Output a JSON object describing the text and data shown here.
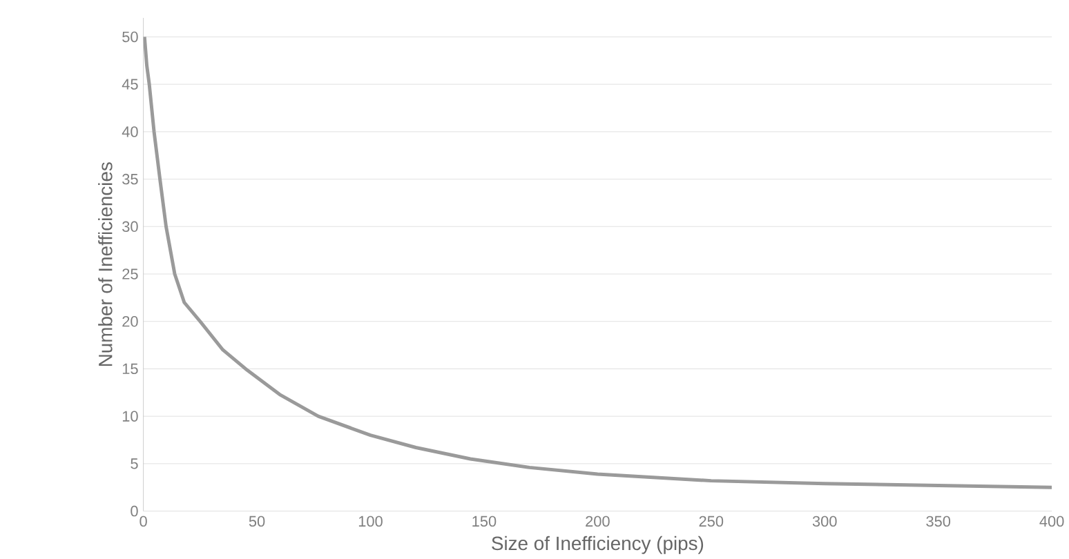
{
  "chart_data": {
    "type": "line",
    "xlabel": "Size of Inefficiency (pips)",
    "ylabel": "Number of Inefficiencies",
    "series": [
      {
        "color": "#9a9a9a",
        "x": [
          0.5,
          1.5,
          2.6,
          4.7,
          7.3,
          10,
          13.8,
          18,
          25,
          35,
          45,
          60,
          77,
          100,
          120,
          144,
          170,
          200,
          250,
          300,
          350,
          400
        ],
        "values": [
          50,
          47,
          45,
          40,
          35,
          30,
          25,
          22,
          20,
          17,
          15,
          12.3,
          10,
          8,
          6.7,
          5.5,
          4.6,
          3.9,
          3.2,
          2.9,
          2.7,
          2.5
        ]
      }
    ],
    "xlim": [
      0,
      400
    ],
    "ylim": [
      0,
      52
    ],
    "xticks": [
      0,
      50,
      100,
      150,
      200,
      250,
      300,
      350,
      400
    ],
    "yticks": [
      0,
      5,
      10,
      15,
      20,
      25,
      30,
      35,
      40,
      45,
      50
    ],
    "grid": "y",
    "marker": "none",
    "line_style": "solid"
  }
}
